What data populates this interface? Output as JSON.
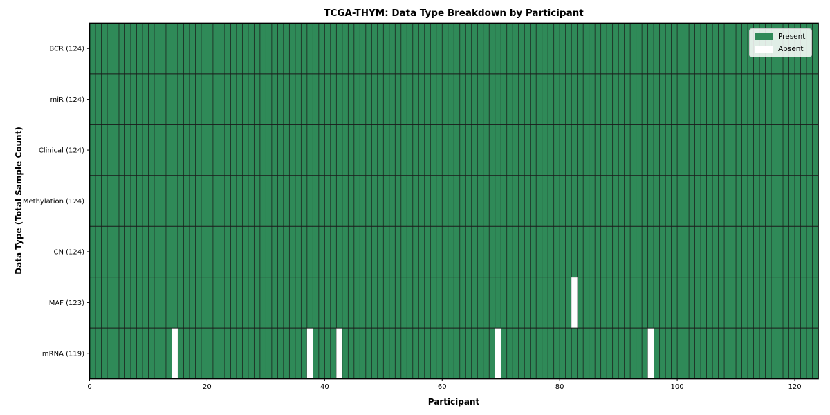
{
  "chart_data": {
    "type": "heatmap",
    "title": "TCGA-THYM: Data Type Breakdown by Participant",
    "xlabel": "Participant",
    "ylabel": "Data Type (Total Sample Count)",
    "x_ticks": [
      0,
      20,
      40,
      60,
      80,
      100,
      120
    ],
    "xlim": [
      0,
      124
    ],
    "n_participants": 124,
    "grid": true,
    "rows": [
      {
        "label": "BCR (124)",
        "data_type": "BCR",
        "present_count": 124,
        "absent_participants": []
      },
      {
        "label": "miR (124)",
        "data_type": "miR",
        "present_count": 124,
        "absent_participants": []
      },
      {
        "label": "Clinical (124)",
        "data_type": "Clinical",
        "present_count": 124,
        "absent_participants": []
      },
      {
        "label": "Methylation (124)",
        "data_type": "Methylation",
        "present_count": 124,
        "absent_participants": []
      },
      {
        "label": "CN (124)",
        "data_type": "CN",
        "present_count": 124,
        "absent_participants": []
      },
      {
        "label": "MAF (123)",
        "data_type": "MAF",
        "present_count": 123,
        "absent_participants": [
          82
        ]
      },
      {
        "label": "mRNA (119)",
        "data_type": "mRNA",
        "present_count": 119,
        "absent_participants": [
          14,
          37,
          42,
          69,
          95
        ]
      }
    ],
    "legend": {
      "position": "upper right",
      "entries": [
        {
          "label": "Present",
          "color": "#2f8a58"
        },
        {
          "label": "Absent",
          "color": "#ffffff"
        }
      ]
    },
    "colors": {
      "present": "#2f8a58",
      "absent": "#ffffff",
      "cell_edge": "#1a1a1a",
      "spine": "#000000",
      "background": "#ffffff"
    }
  }
}
